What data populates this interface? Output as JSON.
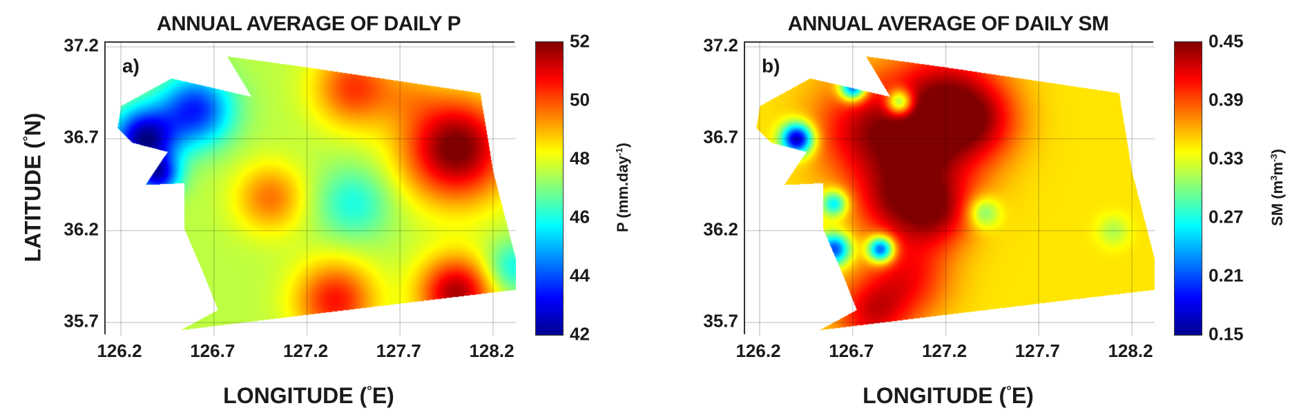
{
  "chart_data": [
    {
      "type": "heatmap",
      "panel_label": "a)",
      "title": "ANNUAL AVERAGE OF DAILY P",
      "xlabel": {
        "pre": "LONGITUDE (",
        "deg": "°",
        "post": "E)"
      },
      "ylabel": {
        "pre": "LATITUDE (",
        "deg": "°",
        "post": "N)"
      },
      "xticks": [
        "126.2",
        "126.7",
        "127.2",
        "127.7",
        "128.2"
      ],
      "yticks": [
        "37.2",
        "36.7",
        "36.2",
        "35.7"
      ],
      "xlim": [
        126.1,
        128.34
      ],
      "ylim": [
        35.62,
        37.26
      ],
      "colorbar": {
        "label_pre": "P (mm.day",
        "label_sup": "-1",
        "label_post": ")",
        "ticks": [
          "52",
          "50",
          "48",
          "46",
          "44",
          "42"
        ],
        "clim": [
          42,
          52
        ]
      },
      "colormap": "jet",
      "base": 47.6,
      "field": [
        [
          126.32,
          36.7,
          -5.2,
          0.12
        ],
        [
          126.6,
          36.86,
          -4,
          0.14
        ],
        [
          126.4,
          36.5,
          -4,
          0.08
        ],
        [
          128.0,
          36.65,
          4.6,
          0.2
        ],
        [
          128.0,
          35.86,
          4,
          0.14
        ],
        [
          127.35,
          35.82,
          3,
          0.15
        ],
        [
          127.0,
          36.38,
          2,
          0.13
        ],
        [
          127.45,
          36.98,
          2.6,
          0.15
        ],
        [
          127.45,
          36.35,
          -1.6,
          0.14
        ],
        [
          127.75,
          36.95,
          0.8,
          0.12
        ],
        [
          128.3,
          36.0,
          -1.8,
          0.1
        ]
      ],
      "region": [
        [
          126.77,
          37.15
        ],
        [
          127.2,
          37.09
        ],
        [
          128.13,
          36.95
        ],
        [
          128.2,
          36.52
        ],
        [
          128.32,
          36.05
        ],
        [
          128.32,
          35.88
        ],
        [
          127.25,
          35.75
        ],
        [
          126.52,
          35.66
        ],
        [
          126.72,
          35.77
        ],
        [
          126.65,
          35.95
        ],
        [
          126.54,
          36.21
        ],
        [
          126.54,
          36.46
        ],
        [
          126.33,
          36.45
        ],
        [
          126.45,
          36.63
        ],
        [
          126.26,
          36.68
        ],
        [
          126.18,
          36.76
        ],
        [
          126.2,
          36.88
        ],
        [
          126.47,
          37.03
        ],
        [
          126.6,
          37.0
        ],
        [
          126.9,
          36.93
        ]
      ]
    },
    {
      "type": "heatmap",
      "panel_label": "b)",
      "title": "ANNUAL AVERAGE OF DAILY SM",
      "xlabel": {
        "pre": "LONGITUDE (",
        "deg": "°",
        "post": "E)"
      },
      "xticks": [
        "126.2",
        "126.7",
        "127.2",
        "127.7",
        "128.2"
      ],
      "yticks": [
        "37.2",
        "36.7",
        "36.2",
        "35.7"
      ],
      "xlim": [
        126.15,
        128.4
      ],
      "ylim": [
        35.62,
        37.26
      ],
      "colorbar": {
        "label_pre": "SM (m",
        "label_sup": "3",
        "label_mid": "m",
        "label_sup2": "-3",
        "label_post": ")",
        "ticks": [
          "0.45",
          "0.39",
          "0.33",
          "0.27",
          "0.21",
          "0.15"
        ],
        "clim": [
          0.15,
          0.45
        ]
      },
      "colormap": "jet",
      "base": 0.345,
      "field": [
        [
          126.75,
          36.75,
          0.07,
          0.2
        ],
        [
          127.1,
          36.65,
          0.08,
          0.22
        ],
        [
          127.2,
          36.95,
          0.07,
          0.2
        ],
        [
          127.4,
          36.8,
          0.05,
          0.15
        ],
        [
          126.9,
          36.35,
          0.06,
          0.15
        ],
        [
          127.15,
          36.3,
          0.07,
          0.14
        ],
        [
          127.0,
          35.95,
          0.06,
          0.16
        ],
        [
          126.8,
          35.75,
          0.07,
          0.14
        ],
        [
          126.4,
          36.7,
          -0.19,
          0.06
        ],
        [
          126.7,
          36.98,
          -0.16,
          0.05
        ],
        [
          126.95,
          36.9,
          -0.12,
          0.05
        ],
        [
          126.6,
          36.1,
          -0.14,
          0.06
        ],
        [
          126.85,
          36.1,
          -0.17,
          0.05
        ],
        [
          126.6,
          36.35,
          -0.1,
          0.05
        ],
        [
          127.4,
          36.3,
          -0.06,
          0.06
        ],
        [
          128.1,
          36.2,
          -0.03,
          0.06
        ]
      ],
      "region": [
        [
          126.77,
          37.15
        ],
        [
          127.2,
          37.09
        ],
        [
          128.13,
          36.95
        ],
        [
          128.2,
          36.52
        ],
        [
          128.32,
          36.05
        ],
        [
          128.32,
          35.88
        ],
        [
          127.25,
          35.75
        ],
        [
          126.52,
          35.66
        ],
        [
          126.72,
          35.77
        ],
        [
          126.65,
          35.95
        ],
        [
          126.54,
          36.21
        ],
        [
          126.54,
          36.46
        ],
        [
          126.33,
          36.45
        ],
        [
          126.45,
          36.63
        ],
        [
          126.26,
          36.68
        ],
        [
          126.18,
          36.76
        ],
        [
          126.2,
          36.88
        ],
        [
          126.47,
          37.03
        ],
        [
          126.6,
          37.0
        ],
        [
          126.9,
          36.93
        ]
      ]
    }
  ]
}
